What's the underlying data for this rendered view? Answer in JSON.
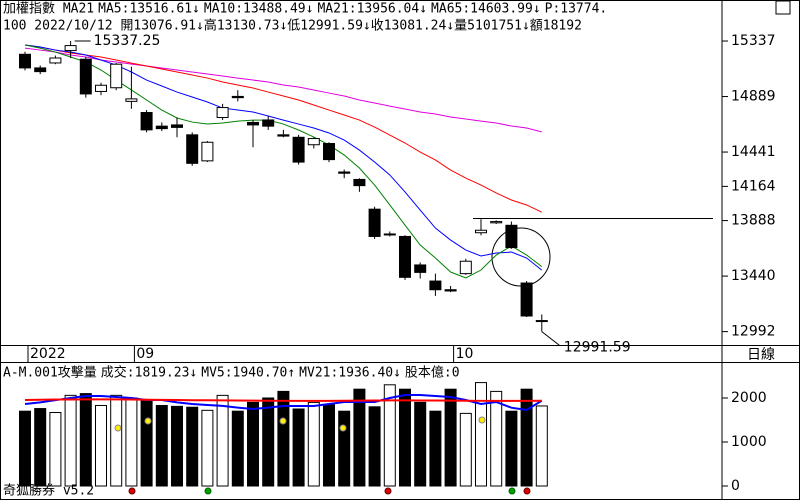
{
  "chart_data": [
    {
      "type": "candlestick",
      "title": "加權指數 MA21",
      "info": "100 2022/10/12 開13076.91↓高13130.73↓低12991.59↓收13081.24↓量5101751↓額18192",
      "extras": [
        {
          "text": "P:13774.",
          "color": "#008000"
        }
      ],
      "categories": [
        "2022",
        null,
        null,
        null,
        null,
        null,
        null,
        "09",
        null,
        null,
        null,
        null,
        null,
        null,
        null,
        null,
        null,
        null,
        null,
        null,
        null,
        null,
        null,
        null,
        null,
        null,
        null,
        null,
        "10",
        null,
        null,
        null,
        null,
        null,
        null
      ],
      "open": [
        15230,
        15120,
        15160,
        15260,
        15190,
        14930,
        14960,
        14850,
        14760,
        14650,
        14660,
        14580,
        14370,
        14720,
        14890,
        14680,
        14700,
        14580,
        14560,
        14500,
        14510,
        14280,
        14220,
        13980,
        13780,
        13760,
        13530,
        13400,
        13330,
        13460,
        13790,
        13870,
        13850,
        13384,
        13076.91
      ],
      "high": [
        15250,
        15140,
        15220,
        15337.25,
        15210,
        15000,
        15160,
        15130,
        14780,
        14680,
        14720,
        14600,
        14530,
        14830,
        14940,
        14700,
        14730,
        14620,
        14580,
        14560,
        14520,
        14300,
        14230,
        14000,
        13800,
        13770,
        13550,
        13460,
        13360,
        13580,
        13900,
        13890,
        13880,
        13400,
        13130.73
      ],
      "low": [
        15100,
        15070,
        15150,
        15200,
        14880,
        14900,
        14940,
        14790,
        14600,
        14610,
        14560,
        14330,
        14360,
        14700,
        14850,
        14480,
        14620,
        14560,
        14340,
        14470,
        14360,
        14230,
        14120,
        13740,
        13760,
        13410,
        13420,
        13280,
        13310,
        13450,
        13770,
        13860,
        13660,
        13110,
        12991.59
      ],
      "close": [
        15120,
        15090,
        15200,
        15300,
        14910,
        14980,
        15150,
        14870,
        14620,
        14630,
        14640,
        14350,
        14520,
        14800,
        14880,
        14660,
        14650,
        14570,
        14360,
        14550,
        14380,
        14270,
        14170,
        13760,
        13780,
        13430,
        13470,
        13330,
        13320,
        13560,
        13810,
        13880,
        13670,
        13118,
        13081.24
      ],
      "series": [
        {
          "name": "MA5:13516.61↓",
          "color": "#008000",
          "values": [
            15305,
            15280,
            15248,
            15208,
            15168,
            15103,
            15022,
            14942,
            14861,
            14780,
            14716,
            14683,
            14667,
            14675,
            14691,
            14699,
            14699,
            14667,
            14619,
            14562,
            14498,
            14417,
            14312,
            14175,
            14014,
            13852,
            13691,
            13586,
            13473,
            13425,
            13489,
            13610,
            13683,
            13610,
            13516.61
          ]
        },
        {
          "name": "MA10:13488.49↓",
          "color": "#0000ff",
          "values": [
            15305,
            15289,
            15264,
            15248,
            15224,
            15184,
            15143,
            15087,
            15022,
            14974,
            14925,
            14885,
            14845,
            14796,
            14780,
            14764,
            14732,
            14699,
            14667,
            14635,
            14595,
            14538,
            14457,
            14361,
            14256,
            14119,
            13973,
            13828,
            13731,
            13650,
            13602,
            13626,
            13634,
            13586,
            13488.49
          ]
        },
        {
          "name": "MA21:13956.04↓",
          "color": "#ff0000",
          "values": [
            15305,
            15289,
            15264,
            15240,
            15224,
            15208,
            15184,
            15159,
            15135,
            15111,
            15087,
            15063,
            15038,
            15006,
            14982,
            14958,
            14925,
            14893,
            14861,
            14821,
            14780,
            14740,
            14699,
            14643,
            14578,
            14514,
            14441,
            14377,
            14296,
            14231,
            14175,
            14111,
            14054,
            14014,
            13956.04
          ]
        },
        {
          "name": "MA65:14603.99↓",
          "color": "#e000e0",
          "values": [
            15280,
            15264,
            15248,
            15224,
            15208,
            15184,
            15168,
            15151,
            15135,
            15119,
            15103,
            15087,
            15071,
            15055,
            15038,
            15022,
            15006,
            14982,
            14966,
            14942,
            14917,
            14893,
            14861,
            14837,
            14812,
            14788,
            14764,
            14748,
            14724,
            14708,
            14691,
            14675,
            14651,
            14635,
            14603.99
          ]
        }
      ],
      "annotations": [
        15337.25,
        12991.59
      ],
      "hline": 13905,
      "ylim": [
        12884,
        15668
      ],
      "yticks": [
        15337,
        14889,
        14441,
        14164,
        13888,
        13440,
        12992
      ]
    },
    {
      "type": "bar",
      "title": "A-M.001攻擊量",
      "extras": [
        {
          "text": "成交:1819.23↓",
          "color": "#008000"
        },
        {
          "text": "股本億:0",
          "color": "#e000e0"
        }
      ],
      "values": [
        1700,
        1760,
        1670,
        2060,
        2100,
        1830,
        2060,
        2000,
        1950,
        1830,
        1810,
        1790,
        1720,
        2060,
        1700,
        1900,
        2000,
        2150,
        1750,
        1900,
        1850,
        1700,
        2200,
        1800,
        2300,
        2200,
        1900,
        1700,
        2200,
        1650,
        2350,
        2150,
        1700,
        2200,
        1819.23
      ],
      "series": [
        {
          "name": "MV5:1940.70↑",
          "color": "#0000ff",
          "values": [
            1864,
            1900,
            1950,
            2000,
            2045,
            2045,
            2023,
            2000,
            1955,
            1955,
            1900,
            1864,
            1841,
            1820,
            1780,
            1750,
            1780,
            1818,
            1818,
            1818,
            1864,
            1909,
            1909,
            1909,
            2000,
            2068,
            2068,
            2045,
            2023,
            1955,
            1864,
            1909,
            1780,
            1727,
            1940.7
          ]
        },
        {
          "name": "MV21:1936.40↓",
          "color": "#ff0000",
          "values": [
            1955,
            1960,
            1965,
            1965,
            1970,
            1970,
            1968,
            1965,
            1960,
            1958,
            1955,
            1950,
            1948,
            1945,
            1942,
            1940,
            1938,
            1936,
            1935,
            1935,
            1936,
            1938,
            1940,
            1942,
            1945,
            1945,
            1944,
            1942,
            1940,
            1938,
            1936,
            1935,
            1935,
            1936,
            1936.4
          ]
        }
      ],
      "ylim": [
        -318,
        2818
      ],
      "yticks": [
        2000,
        1000,
        0
      ]
    }
  ],
  "period_label": "日線",
  "footer": "奇狐勝券 v5.2"
}
